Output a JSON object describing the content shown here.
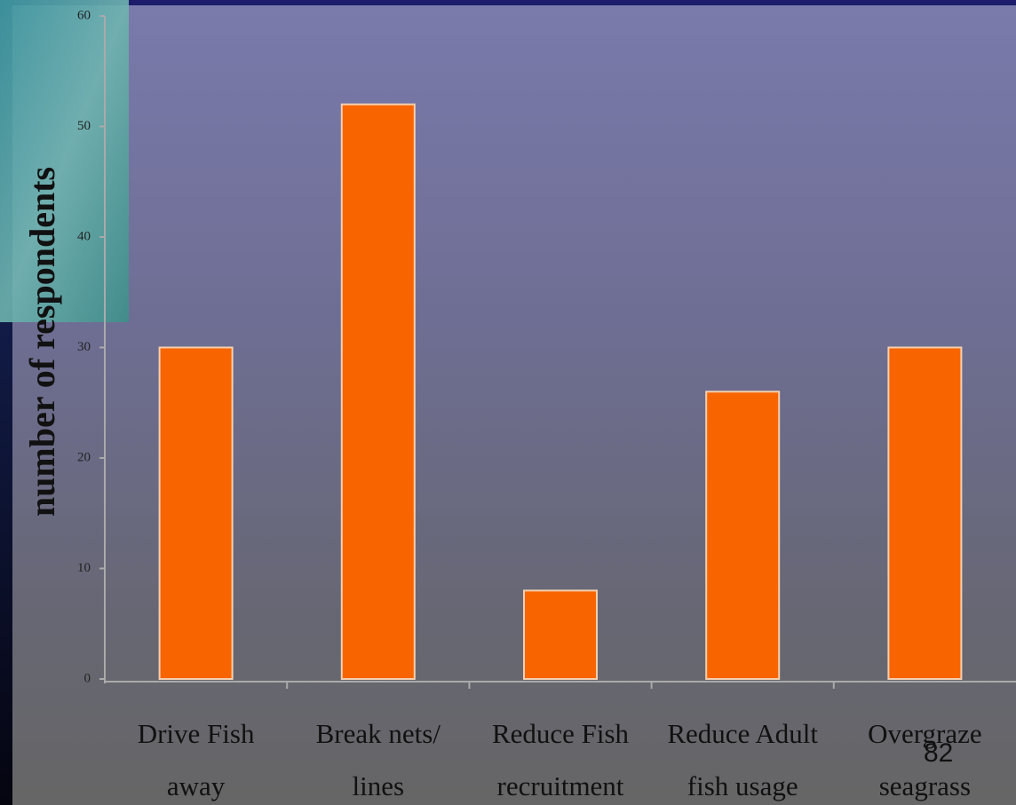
{
  "page_number": "82",
  "chart_data": {
    "type": "bar",
    "ylabel": "number of respondents",
    "categories": [
      "Drive Fish away",
      "Break nets/ lines",
      "Reduce Fish recruitment",
      "Reduce Adult fish usage",
      "Overgraze seagrass"
    ],
    "values": [
      30,
      52,
      8,
      26,
      30
    ],
    "color": "#f86400",
    "ylim": [
      0,
      60
    ],
    "yticks": [
      0,
      10,
      20,
      30,
      40,
      50,
      60
    ],
    "grid": false
  }
}
